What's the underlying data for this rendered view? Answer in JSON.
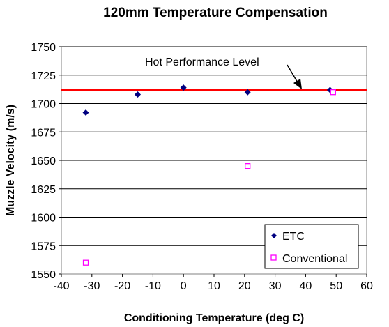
{
  "chart_data": {
    "type": "scatter",
    "title": "120mm Temperature Compensation",
    "xlabel": "Conditioning Temperature (deg C)",
    "ylabel": "Muzzle Velocity (m/s)",
    "xlim": [
      -40,
      60
    ],
    "ylim": [
      1550,
      1750
    ],
    "x_ticks": [
      -40,
      -30,
      -20,
      -10,
      0,
      10,
      20,
      30,
      40,
      50,
      60
    ],
    "y_ticks": [
      1550,
      1575,
      1600,
      1625,
      1650,
      1675,
      1700,
      1725,
      1750
    ],
    "grid": "horizontal",
    "legend_position": "bottom-right",
    "series": [
      {
        "name": "ETC",
        "marker": "filled-diamond",
        "color": "#000080",
        "x": [
          -32,
          -15,
          0,
          21,
          48
        ],
        "y": [
          1692,
          1708,
          1714,
          1710,
          1712
        ]
      },
      {
        "name": "Conventional",
        "marker": "open-square",
        "color": "#ff00ff",
        "x": [
          -32,
          21,
          49
        ],
        "y": [
          1560,
          1645,
          1710
        ]
      }
    ],
    "reference_line": {
      "label": "Hot Performance Level",
      "y": 1712,
      "color": "#ff0000"
    }
  }
}
